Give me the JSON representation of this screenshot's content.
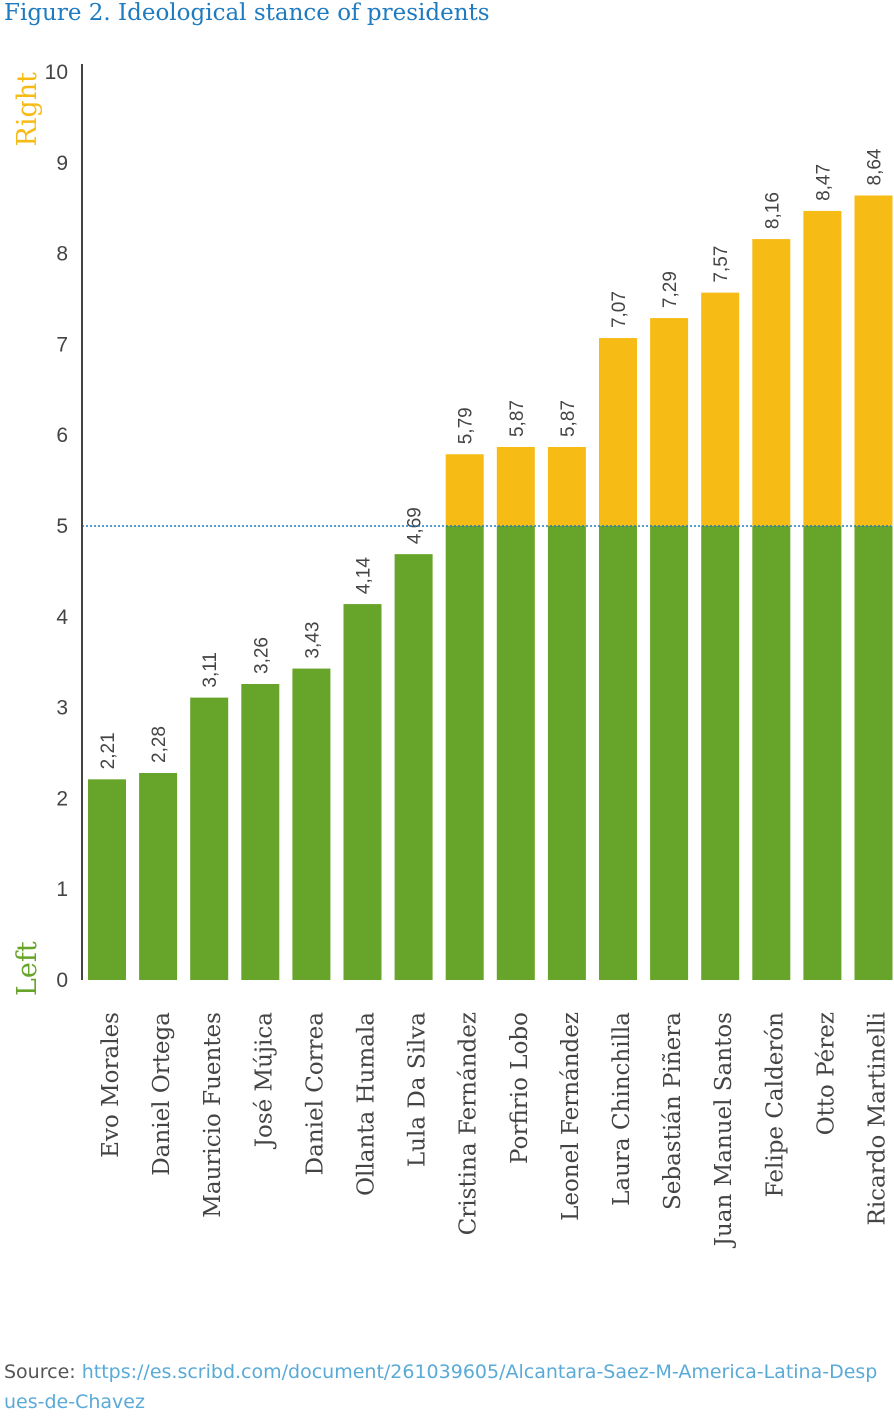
{
  "title": "Figure 2. Ideological stance of presidents",
  "source": {
    "label": "Source:",
    "url": "https://es.scribd.com/document/261039605/Alcantara-Saez-M-America-Latina-Despues-de-Chavez"
  },
  "colors": {
    "left": "#67a52a",
    "right": "#f7bb16",
    "threshold": "#1f7bbf",
    "axis": "#444444",
    "title": "#1f7bbf"
  },
  "chart_data": {
    "type": "bar",
    "categories": [
      "Evo Morales",
      "Daniel Ortega",
      "Mauricio Fuentes",
      "José Mújica",
      "Daniel Correa",
      "Ollanta Humala",
      "Lula Da Silva",
      "Cristina Fernández",
      "Porfirio Lobo",
      "Leonel Fernández",
      "Laura Chinchilla",
      "Sebastián Piñera",
      "Juan Manuel Santos",
      "Felipe Calderón",
      "Otto Pérez",
      "Ricardo Martinelli"
    ],
    "values": [
      2.21,
      2.28,
      3.11,
      3.26,
      3.43,
      4.14,
      4.69,
      5.79,
      5.87,
      5.87,
      7.07,
      7.29,
      7.57,
      8.16,
      8.47,
      8.64
    ],
    "value_labels": [
      "2,21",
      "2,28",
      "3,11",
      "3,26",
      "3,43",
      "4,14",
      "4,69",
      "5,79",
      "5,87",
      "5,87",
      "7,07",
      "7,29",
      "7,57",
      "8,16",
      "8,47",
      "8,64"
    ],
    "ylim": [
      0,
      10
    ],
    "yticks": [
      0,
      1,
      2,
      3,
      4,
      5,
      6,
      7,
      8,
      9,
      10
    ],
    "threshold": 5,
    "axis_end_labels": {
      "bottom": "Left",
      "top": "Right"
    },
    "grid": false
  }
}
